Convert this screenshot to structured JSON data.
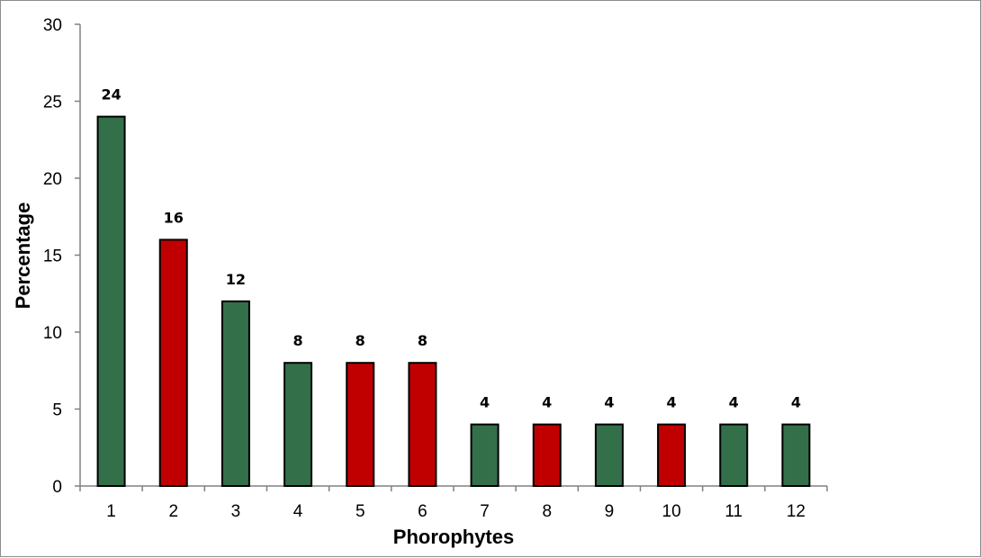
{
  "chart_data": {
    "type": "bar",
    "title": "",
    "xlabel": "Phorophytes",
    "ylabel": "Percentage",
    "ylim": [
      0,
      30
    ],
    "yticks": [
      0,
      5,
      10,
      15,
      20,
      25,
      30
    ],
    "grid": false,
    "legend": "none",
    "categories": [
      "1",
      "2",
      "3",
      "4",
      "5",
      "6",
      "7",
      "8",
      "9",
      "10",
      "11",
      "12"
    ],
    "values": [
      24,
      16,
      12,
      8,
      8,
      8,
      4,
      4,
      4,
      4,
      4,
      4
    ],
    "data_labels": [
      "24",
      "16",
      "12",
      "8",
      "8",
      "8",
      "4",
      "4",
      "4",
      "4",
      "4",
      "4"
    ],
    "bar_colors": [
      "#33704a",
      "#c00000",
      "#33704a",
      "#33704a",
      "#c00000",
      "#c00000",
      "#33704a",
      "#c00000",
      "#33704a",
      "#c00000",
      "#33704a",
      "#33704a"
    ],
    "colors": {
      "green": "#33704a",
      "red": "#c00000",
      "outline": "#000000",
      "axis": "#808080"
    }
  }
}
